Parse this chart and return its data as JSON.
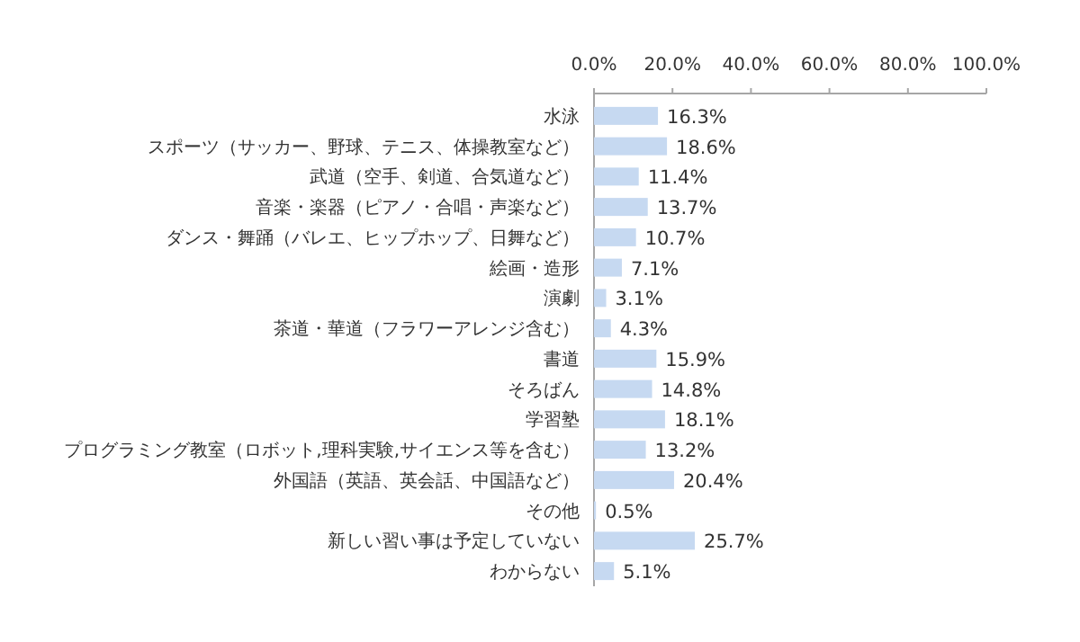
{
  "chart_data": {
    "type": "bar",
    "orientation": "horizontal",
    "color": "#c6d9f1",
    "categories": [
      "水泳",
      "スポーツ（サッカー、野球、テニス、体操教室など）",
      "武道（空手、剣道、合気道など）",
      "音楽・楽器（ピアノ・合唱・声楽など）",
      "ダンス・舞踊（バレエ、ヒップホップ、日舞など）",
      "絵画・造形",
      "演劇",
      "茶道・華道（フラワーアレンジ含む）",
      "書道",
      "そろばん",
      "学習塾",
      "プログラミング教室（ロボット,理科実験,サイエンス等を含む）",
      "外国語（英語、英会話、中国語など）",
      "その他",
      "新しい習い事は予定していない",
      "わからない"
    ],
    "values": [
      16.3,
      18.6,
      11.4,
      13.7,
      10.7,
      7.1,
      3.1,
      4.3,
      15.9,
      14.8,
      18.1,
      13.2,
      20.4,
      0.5,
      25.7,
      5.1
    ],
    "value_labels": [
      "16.3%",
      "18.6%",
      "11.4%",
      "13.7%",
      "10.7%",
      "7.1%",
      "3.1%",
      "4.3%",
      "15.9%",
      "14.8%",
      "18.1%",
      "13.2%",
      "20.4%",
      "0.5%",
      "25.7%",
      "5.1%"
    ],
    "xlim": [
      0,
      100
    ],
    "xticks": [
      {
        "value": 0,
        "label": "0.0%"
      },
      {
        "value": 20,
        "label": "20.0%"
      },
      {
        "value": 40,
        "label": "40.0%"
      },
      {
        "value": 60,
        "label": "60.0%"
      },
      {
        "value": 80,
        "label": "80.0%"
      },
      {
        "value": 100,
        "label": "100.0%"
      }
    ],
    "grid": false,
    "legend": false
  }
}
